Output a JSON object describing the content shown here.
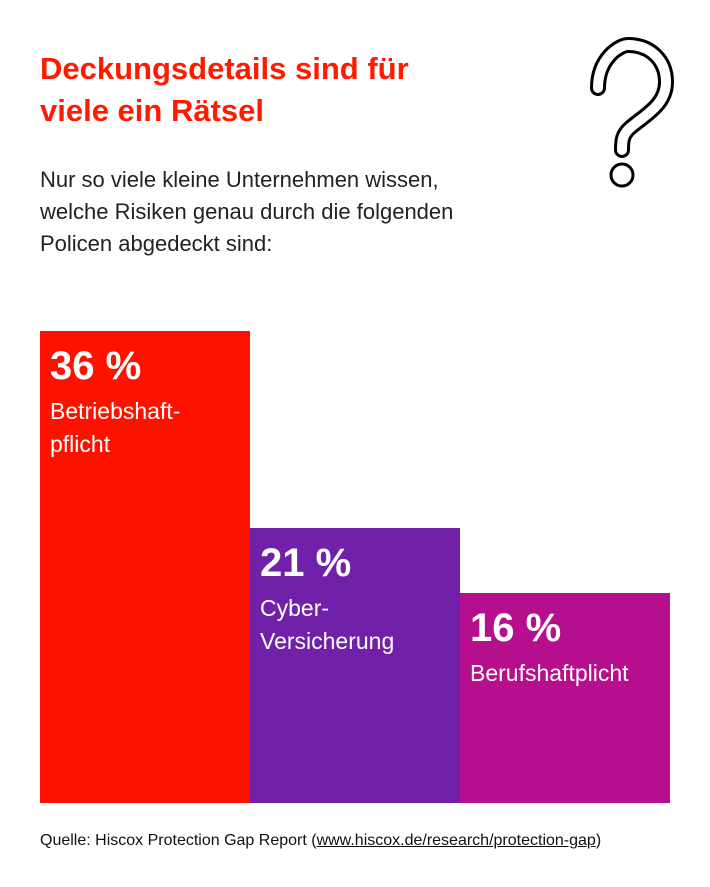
{
  "chart_data": {
    "type": "bar",
    "title": "Deckungsdetails sind für\nviele ein Rätsel",
    "subtitle": "Nur so viele kleine Unternehmen wissen,\nwelche Risiken genau durch die folgenden\nPolicen abgedeckt sind:",
    "categories": [
      "Betriebshaft-\npflicht",
      "Cyber-\nVersicherung",
      "Berufshaftplicht"
    ],
    "values": [
      36,
      21,
      16
    ],
    "value_labels": [
      "36 %",
      "21 %",
      "16 %"
    ],
    "colors": [
      "#ff1100",
      "#7120aa",
      "#b50f8e"
    ],
    "source": {
      "text": "Quelle: Hiscox Protection Gap Report (",
      "link": "www.hiscox.de/research/protection-gap",
      "close": ")"
    }
  }
}
